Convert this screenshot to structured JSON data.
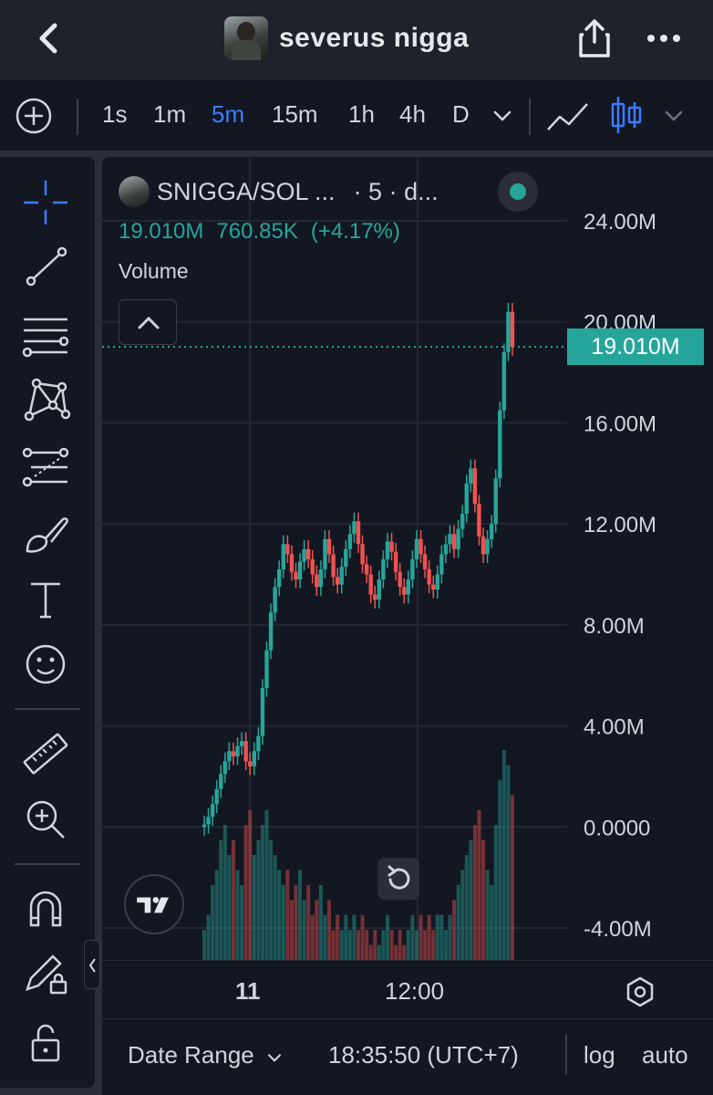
{
  "topbar": {
    "title": "severus nigga",
    "back_icon": "chevron-left-icon",
    "share_icon": "share-icon",
    "more_icon": "more-icon"
  },
  "toolbar": {
    "timeframes": [
      "1s",
      "1m",
      "5m",
      "15m",
      "1h",
      "4h",
      "D"
    ],
    "active_timeframe": "5m",
    "accent": "#3d7bff"
  },
  "sidebar": {
    "tools": [
      "crosshair-icon",
      "trend-line-icon",
      "fib-icon",
      "pattern-icon",
      "prediction-icon",
      "brush-icon",
      "text-icon",
      "emoji-icon",
      "ruler-icon",
      "zoom-icon",
      "magnet-icon",
      "lock-draw-icon",
      "unlock-icon"
    ]
  },
  "chart": {
    "symbol": "SNIGGA/SOL ...",
    "interval_info": "· 5 · d...",
    "price": "19.010M",
    "change": "760.85K",
    "change_pct": "(+4.17%)",
    "volume_label": "Volume",
    "last_price_tag": "19.010M",
    "up_color": "#26a69a",
    "down_color": "#ef5350"
  },
  "chart_data": {
    "type": "candlestick",
    "y_tick_labels": [
      "24.00M",
      "20.00M",
      "16.00M",
      "12.00M",
      "8.00M",
      "4.00M",
      "0.0000",
      "-4.00M"
    ],
    "ylim": [
      -4000000,
      24000000
    ],
    "x_tick_labels": [
      "11",
      "12:00"
    ],
    "last_price": 19010000,
    "grid": true,
    "series": [
      {
        "name": "price",
        "values": [
          0.1,
          0.4,
          0.9,
          1.5,
          2.1,
          2.6,
          3.0,
          2.8,
          3.2,
          3.4,
          2.6,
          2.4,
          3.0,
          3.6,
          5.5,
          7.0,
          8.5,
          9.5,
          10.2,
          11.2,
          10.8,
          10.1,
          9.8,
          10.5,
          11.0,
          10.6,
          10.0,
          9.5,
          10.2,
          11.4,
          10.8,
          9.9,
          9.6,
          10.3,
          11.0,
          11.6,
          12.1,
          11.2,
          10.4,
          10.0,
          9.2,
          9.0,
          9.8,
          10.6,
          11.3,
          10.9,
          10.1,
          9.5,
          9.2,
          9.8,
          10.6,
          11.4,
          10.8,
          10.2,
          9.6,
          9.4,
          10.0,
          10.8,
          11.2,
          11.6,
          11.0,
          11.8,
          12.4,
          13.6,
          14.2,
          12.8,
          11.5,
          10.8,
          11.4,
          12.0,
          13.8,
          16.5,
          18.8,
          20.4,
          19.01
        ]
      },
      {
        "name": "volume",
        "values": [
          0.2,
          0.3,
          0.5,
          0.6,
          0.8,
          0.9,
          0.7,
          0.8,
          0.6,
          0.5,
          0.9,
          1.0,
          0.7,
          0.8,
          0.9,
          1.0,
          0.8,
          0.7,
          0.6,
          0.5,
          0.6,
          0.4,
          0.5,
          0.6,
          0.4,
          0.5,
          0.3,
          0.4,
          0.5,
          0.3,
          0.4,
          0.2,
          0.3,
          0.2,
          0.3,
          0.2,
          0.3,
          0.2,
          0.3,
          0.2,
          0.1,
          0.2,
          0.1,
          0.2,
          0.3,
          0.2,
          0.1,
          0.2,
          0.1,
          0.2,
          0.3,
          0.2,
          0.3,
          0.2,
          0.3,
          0.2,
          0.3,
          0.3,
          0.2,
          0.3,
          0.4,
          0.5,
          0.6,
          0.7,
          0.8,
          0.9,
          1.0,
          0.8,
          0.6,
          0.5,
          0.9,
          1.2,
          1.4,
          1.3,
          1.1
        ]
      }
    ]
  },
  "xaxis": {
    "label_11": "11",
    "label_1200": "12:00",
    "settings_icon": "hexagon-settings-icon"
  },
  "bottom": {
    "date_range": "Date Range",
    "time": "18:35:50 (UTC+7)",
    "log": "log",
    "auto": "auto"
  }
}
